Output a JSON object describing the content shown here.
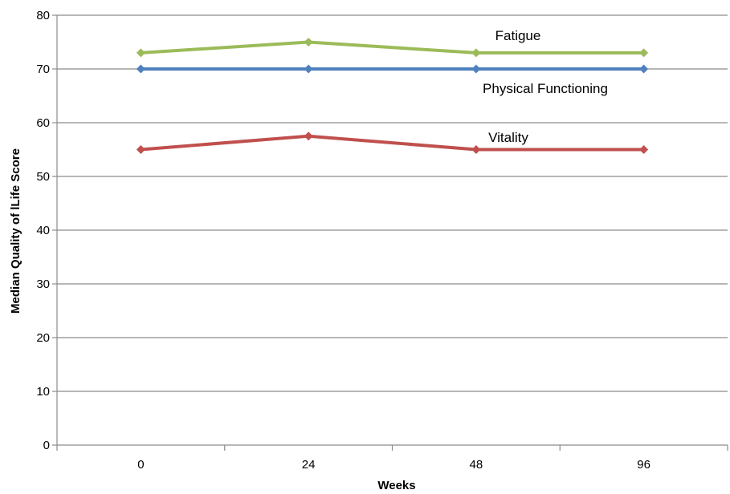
{
  "chart_data": {
    "type": "line",
    "categories": [
      "0",
      "24",
      "48",
      "96"
    ],
    "series": [
      {
        "name": "Fatigue",
        "values": [
          73,
          75,
          73,
          73
        ],
        "color": "#9bbb59"
      },
      {
        "name": "Physical Functioning",
        "values": [
          70,
          70,
          70,
          70
        ],
        "color": "#4f81bd"
      },
      {
        "name": "Vitality",
        "values": [
          55,
          57.5,
          55,
          55
        ],
        "color": "#c0504d"
      }
    ],
    "title": "",
    "xlabel": "Weeks",
    "ylabel": "Median Quality of lLife Score",
    "ylim": [
      0,
      80
    ],
    "yticks": [
      "0",
      "10",
      "20",
      "30",
      "40",
      "50",
      "60",
      "70",
      "80"
    ],
    "grid": true,
    "legend": "none (series labeled inline)"
  }
}
